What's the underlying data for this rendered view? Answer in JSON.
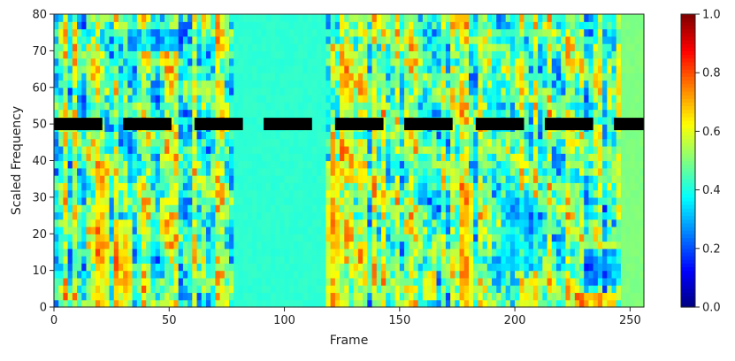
{
  "chart_data": {
    "type": "heatmap",
    "title": "",
    "xlabel": "Frame",
    "ylabel": "Scaled Frequency",
    "xlim": [
      0,
      256
    ],
    "ylim": [
      0,
      80
    ],
    "x_ticks": [
      "0",
      "50",
      "100",
      "150",
      "200",
      "250"
    ],
    "y_ticks": [
      "0",
      "10",
      "20",
      "30",
      "40",
      "50",
      "60",
      "70",
      "80"
    ],
    "colormap": "jet",
    "colorbar": {
      "range": [
        0.0,
        1.0
      ],
      "ticks": [
        "0.0",
        "0.2",
        "0.4",
        "0.6",
        "0.8",
        "1.0"
      ]
    },
    "flat_regions": [
      {
        "frames": [
          78,
          118
        ],
        "value": 0.42,
        "description_level": "uniform"
      },
      {
        "frames": [
          246,
          256
        ],
        "value": 0.5,
        "description_level": "uniform"
      }
    ],
    "hot_spots": [
      {
        "frames": [
          18,
          24
        ],
        "freqs": [
          0,
          40
        ],
        "value": 0.85
      },
      {
        "frames": [
          26,
          34
        ],
        "freqs": [
          0,
          25
        ],
        "value": 0.85
      },
      {
        "frames": [
          118,
          124
        ],
        "freqs": [
          0,
          40
        ],
        "value": 0.85
      },
      {
        "frames": [
          160,
          166
        ],
        "freqs": [
          2,
          10
        ],
        "value": 0.85
      },
      {
        "frames": [
          176,
          182
        ],
        "freqs": [
          0,
          35
        ],
        "value": 0.8
      },
      {
        "frames": [
          203,
          212
        ],
        "freqs": [
          0,
          8
        ],
        "value": 0.8
      },
      {
        "frames": [
          226,
          244
        ],
        "freqs": [
          0,
          4
        ],
        "value": 0.95
      }
    ],
    "cold_spots": [
      {
        "frames": [
          32,
          56
        ],
        "freqs": [
          70,
          76
        ],
        "value": 0.1
      },
      {
        "frames": [
          230,
          246
        ],
        "freqs": [
          6,
          16
        ],
        "value": 0.1
      },
      {
        "frames": [
          195,
          210
        ],
        "freqs": [
          10,
          30
        ],
        "value": 0.2
      }
    ],
    "mask_segments": {
      "freq": 50,
      "color": "#000000",
      "frames": [
        [
          0,
          21
        ],
        [
          30,
          51
        ],
        [
          61,
          82
        ],
        [
          91,
          112
        ],
        [
          122,
          143
        ],
        [
          152,
          173
        ],
        [
          183,
          204
        ],
        [
          213,
          234
        ],
        [
          243,
          256
        ]
      ]
    }
  }
}
